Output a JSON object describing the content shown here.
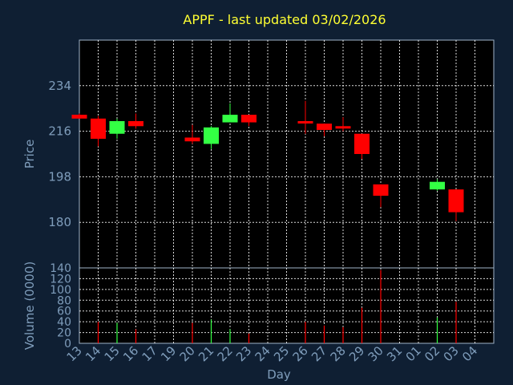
{
  "chart_data": {
    "type": "candlestick",
    "title": "APPF - last updated 03/02/2026",
    "xlabel": "Day",
    "ylabel_price": "Price",
    "ylabel_volume": "Volume (0000)",
    "x_ticks": [
      "13",
      "14",
      "15",
      "16",
      "17",
      "19",
      "20",
      "21",
      "22",
      "23",
      "24",
      "25",
      "26",
      "27",
      "28",
      "29",
      "30",
      "31",
      "01",
      "02",
      "03",
      "04"
    ],
    "price_ticks": [
      180,
      198,
      216,
      234
    ],
    "volume_ticks": [
      0,
      20,
      40,
      60,
      80,
      100,
      120,
      140
    ],
    "price_ylim": [
      162,
      252
    ],
    "volume_ylim": [
      0,
      140
    ],
    "grid": true,
    "up_color": "#33ff44",
    "down_color": "#ff0000",
    "candles": [
      {
        "x": "13",
        "open": 222.5,
        "high": 223,
        "low": 221,
        "close": 221.0
      },
      {
        "x": "14",
        "open": 221,
        "high": 222,
        "low": 210,
        "close": 213
      },
      {
        "x": "15",
        "open": 215,
        "high": 221,
        "low": 213,
        "close": 220
      },
      {
        "x": "16",
        "open": 220,
        "high": 223,
        "low": 217,
        "close": 218
      },
      {
        "x": "20",
        "open": 213.5,
        "high": 218.5,
        "low": 211,
        "close": 212
      },
      {
        "x": "21",
        "open": 211,
        "high": 218,
        "low": 209,
        "close": 217.5
      },
      {
        "x": "22",
        "open": 219.5,
        "high": 227,
        "low": 219.5,
        "close": 222.5
      },
      {
        "x": "23",
        "open": 222.5,
        "high": 222.5,
        "low": 218,
        "close": 219.5
      },
      {
        "x": "26",
        "open": 220,
        "high": 228,
        "low": 215,
        "close": 219.5
      },
      {
        "x": "27",
        "open": 219,
        "high": 219,
        "low": 214,
        "close": 216.5
      },
      {
        "x": "28",
        "open": 218,
        "high": 221.5,
        "low": 216,
        "close": 218
      },
      {
        "x": "29",
        "open": 215,
        "high": 215,
        "low": 205,
        "close": 207
      },
      {
        "x": "30",
        "open": 195,
        "high": 195,
        "low": 186,
        "close": 190.5
      },
      {
        "x": "02",
        "open": 193,
        "high": 197,
        "low": 192.5,
        "close": 196
      },
      {
        "x": "03",
        "open": 193,
        "high": 193,
        "low": 180.5,
        "close": 184
      }
    ],
    "volume": [
      {
        "x": "14",
        "value": 40,
        "direction": "down"
      },
      {
        "x": "15",
        "value": 38,
        "direction": "up"
      },
      {
        "x": "16",
        "value": 26,
        "direction": "down"
      },
      {
        "x": "20",
        "value": 38,
        "direction": "down"
      },
      {
        "x": "21",
        "value": 44,
        "direction": "up"
      },
      {
        "x": "22",
        "value": 26,
        "direction": "up"
      },
      {
        "x": "23",
        "value": 18,
        "direction": "down"
      },
      {
        "x": "26",
        "value": 40,
        "direction": "down"
      },
      {
        "x": "27",
        "value": 33,
        "direction": "down"
      },
      {
        "x": "28",
        "value": 30,
        "direction": "down"
      },
      {
        "x": "29",
        "value": 66,
        "direction": "down"
      },
      {
        "x": "30",
        "value": 136,
        "direction": "down"
      },
      {
        "x": "02",
        "value": 48,
        "direction": "up"
      },
      {
        "x": "03",
        "value": 77,
        "direction": "down"
      }
    ]
  }
}
